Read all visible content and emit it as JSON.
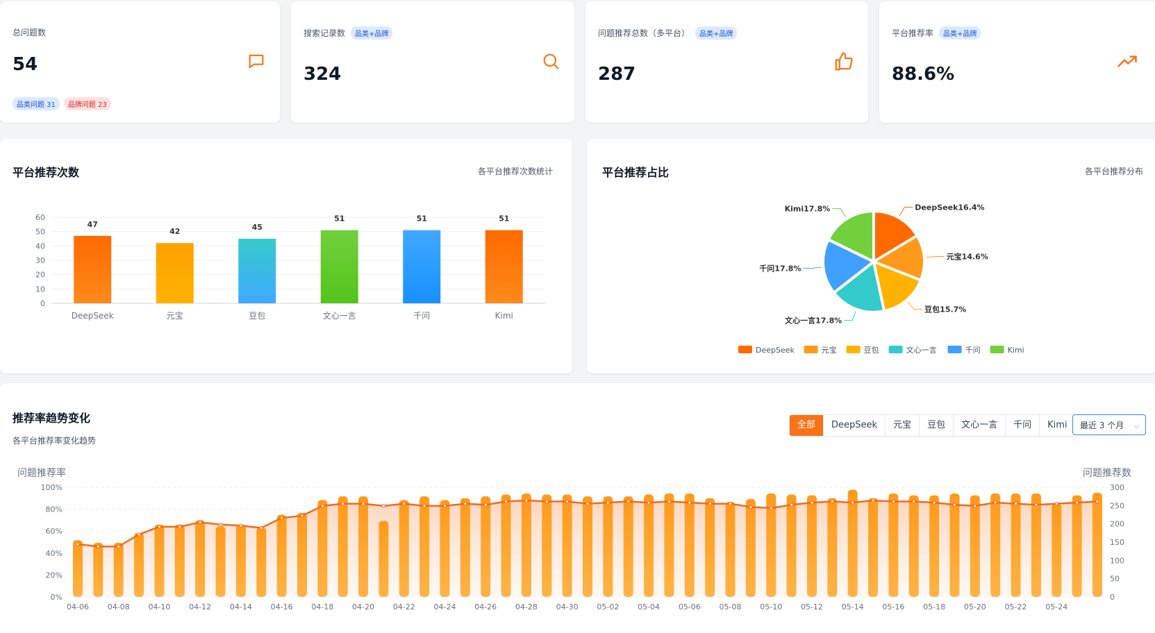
{
  "stats": [
    {
      "label": "总问题数",
      "value": "54",
      "tags": [
        {
          "text": "品类问题 31",
          "color": "blue"
        },
        {
          "text": "品牌问题 23",
          "color": "red"
        }
      ],
      "icon": "message-icon"
    },
    {
      "label": "搜索记录数",
      "value": "324",
      "badge": "品类+品牌",
      "icon": "search-icon"
    },
    {
      "label": "问题推荐总数（多平台）",
      "value": "287",
      "badge": "品类+品牌",
      "icon": "thumbs-up-icon"
    },
    {
      "label": "平台推荐率",
      "value": "88.6%",
      "badge": "品类+品牌",
      "icon": "trending-up-icon"
    }
  ],
  "bar_card": {
    "title": "平台推荐次数",
    "subtitle": "各平台推荐次数统计"
  },
  "pie_card": {
    "title": "平台推荐占比",
    "subtitle": "各平台推荐分布"
  },
  "trend_card": {
    "title": "推荐率趋势变化",
    "subtitle": "各平台推荐率变化趋势",
    "filters": [
      "全部",
      "DeepSeek",
      "元宝",
      "豆包",
      "文心一言",
      "千问",
      "Kimi"
    ],
    "active_filter": "全部",
    "range": "最近 3 个月"
  },
  "colors": {
    "accent": "#f97316",
    "deepseek": "#ff6a00",
    "yuanbao": "#ff9a1a",
    "doubao": "#ffb300",
    "wenxin": "#36cbcb",
    "qianwen": "#40a0ff",
    "kimi": "#72d03d"
  },
  "chart_data": [
    {
      "type": "bar",
      "categories": [
        "DeepSeek",
        "元宝",
        "豆包",
        "文心一言",
        "千问",
        "Kimi"
      ],
      "values": [
        47,
        42,
        45,
        51,
        51,
        51
      ],
      "ylim": [
        0,
        60
      ],
      "yticks": [
        0,
        10,
        20,
        30,
        40,
        50,
        60
      ],
      "data_labels": true
    },
    {
      "type": "pie",
      "labels": [
        "DeepSeek",
        "元宝",
        "豆包",
        "文心一言",
        "千问",
        "Kimi"
      ],
      "values": [
        16.4,
        14.6,
        15.7,
        17.8,
        17.8,
        17.8
      ],
      "slice_labels": [
        "DeepSeek16.4%",
        "元宝14.6%",
        "豆包15.7%",
        "文心一言17.8%",
        "千问17.8%",
        "Kimi17.8%"
      ],
      "legend": "bottom"
    },
    {
      "type": "bar",
      "ylabel": "问题推荐率",
      "y2label": "问题推荐数",
      "ylim": [
        0,
        100
      ],
      "y2lim": [
        0,
        300
      ],
      "yticks": [
        "0%",
        "20%",
        "40%",
        "60%",
        "80%",
        "100%"
      ],
      "y2ticks": [
        "0",
        "50",
        "100",
        "150",
        "200",
        "250",
        "300"
      ],
      "x_tick_labels": [
        "04-06",
        "04-08",
        "04-10",
        "04-12",
        "04-14",
        "04-16",
        "04-18",
        "04-20",
        "04-22",
        "04-24",
        "04-26",
        "04-28",
        "04-30",
        "05-02",
        "05-04",
        "05-06",
        "05-08",
        "05-10",
        "05-12",
        "05-14",
        "05-16",
        "05-18",
        "05-20",
        "05-22",
        "05-24"
      ],
      "x_start": "04-06",
      "rate_line": [
        48,
        46,
        46,
        57,
        64,
        64,
        68,
        66,
        65,
        63,
        72,
        74,
        83,
        85,
        85,
        83,
        85,
        83,
        83,
        85,
        84,
        87,
        88,
        87,
        87,
        85,
        86,
        87,
        86,
        87,
        86,
        85,
        85,
        82,
        81,
        84,
        86,
        87,
        86,
        88,
        87,
        87,
        86,
        84,
        83,
        86,
        85,
        84,
        85,
        86,
        87
      ],
      "count_bars": [
        155,
        148,
        148,
        175,
        198,
        198,
        210,
        193,
        198,
        190,
        225,
        230,
        265,
        275,
        275,
        208,
        265,
        275,
        265,
        270,
        275,
        280,
        283,
        280,
        280,
        275,
        275,
        275,
        280,
        283,
        283,
        270,
        260,
        268,
        283,
        280,
        278,
        270,
        293,
        270,
        283,
        278,
        278,
        283,
        278,
        283,
        283,
        283,
        255,
        278,
        285
      ]
    }
  ]
}
